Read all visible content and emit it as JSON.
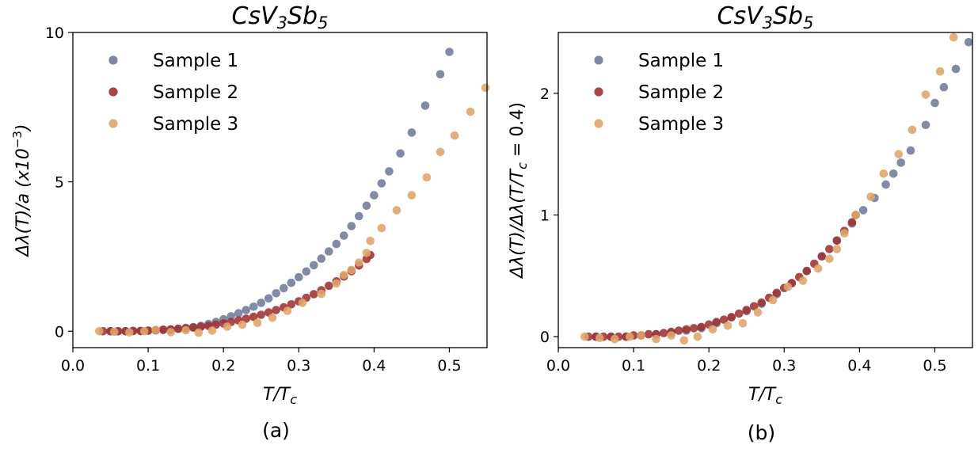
{
  "chart_data": [
    {
      "type": "scatter",
      "title": "CsV3Sb5",
      "xlabel": "T/Tc",
      "ylabel": "Δλ(T)/a (x10⁻³)",
      "panel_label": "(a)",
      "xlim": [
        0.0,
        0.55
      ],
      "ylim": [
        -0.55,
        10.0
      ],
      "xticks": [
        0.0,
        0.1,
        0.2,
        0.3,
        0.4,
        0.5
      ],
      "xtick_labels": [
        "0.0",
        "0.1",
        "0.2",
        "0.3",
        "0.4",
        "0.5"
      ],
      "yticks": [
        0,
        5,
        10
      ],
      "ytick_labels": [
        "0",
        "5",
        "10"
      ],
      "grid": false,
      "legend_position": "top-left",
      "series": [
        {
          "name": "Sample 1",
          "color": "#717a99",
          "points": [
            [
              0.05,
              0.0
            ],
            [
              0.06,
              0.0
            ],
            [
              0.07,
              0.0
            ],
            [
              0.08,
              0.01
            ],
            [
              0.09,
              0.01
            ],
            [
              0.1,
              0.02
            ],
            [
              0.11,
              0.03
            ],
            [
              0.12,
              0.05
            ],
            [
              0.13,
              0.06
            ],
            [
              0.14,
              0.08
            ],
            [
              0.15,
              0.11
            ],
            [
              0.16,
              0.14
            ],
            [
              0.17,
              0.18
            ],
            [
              0.18,
              0.24
            ],
            [
              0.19,
              0.31
            ],
            [
              0.2,
              0.4
            ],
            [
              0.21,
              0.5
            ],
            [
              0.22,
              0.6
            ],
            [
              0.23,
              0.71
            ],
            [
              0.24,
              0.82
            ],
            [
              0.25,
              0.95
            ],
            [
              0.26,
              1.1
            ],
            [
              0.27,
              1.27
            ],
            [
              0.28,
              1.44
            ],
            [
              0.29,
              1.62
            ],
            [
              0.3,
              1.81
            ],
            [
              0.31,
              2.0
            ],
            [
              0.32,
              2.21
            ],
            [
              0.33,
              2.43
            ],
            [
              0.34,
              2.67
            ],
            [
              0.35,
              2.92
            ],
            [
              0.36,
              3.2
            ],
            [
              0.37,
              3.52
            ],
            [
              0.38,
              3.85
            ],
            [
              0.39,
              4.2
            ],
            [
              0.4,
              4.55
            ],
            [
              0.41,
              4.95
            ],
            [
              0.42,
              5.35
            ],
            [
              0.435,
              5.95
            ],
            [
              0.45,
              6.65
            ],
            [
              0.468,
              7.55
            ],
            [
              0.488,
              8.6
            ],
            [
              0.5,
              9.35
            ]
          ]
        },
        {
          "name": "Sample 2",
          "color": "#9e3232",
          "points": [
            [
              0.04,
              0.0
            ],
            [
              0.05,
              0.0
            ],
            [
              0.06,
              0.0
            ],
            [
              0.07,
              0.0
            ],
            [
              0.08,
              0.01
            ],
            [
              0.09,
              0.01
            ],
            [
              0.1,
              0.02
            ],
            [
              0.11,
              0.03
            ],
            [
              0.12,
              0.05
            ],
            [
              0.13,
              0.06
            ],
            [
              0.14,
              0.08
            ],
            [
              0.15,
              0.1
            ],
            [
              0.16,
              0.12
            ],
            [
              0.17,
              0.15
            ],
            [
              0.18,
              0.18
            ],
            [
              0.19,
              0.22
            ],
            [
              0.2,
              0.26
            ],
            [
              0.21,
              0.31
            ],
            [
              0.22,
              0.36
            ],
            [
              0.23,
              0.42
            ],
            [
              0.24,
              0.48
            ],
            [
              0.25,
              0.55
            ],
            [
              0.26,
              0.63
            ],
            [
              0.27,
              0.71
            ],
            [
              0.28,
              0.8
            ],
            [
              0.29,
              0.9
            ],
            [
              0.3,
              1.0
            ],
            [
              0.31,
              1.12
            ],
            [
              0.32,
              1.24
            ],
            [
              0.33,
              1.37
            ],
            [
              0.34,
              1.52
            ],
            [
              0.35,
              1.67
            ],
            [
              0.36,
              1.83
            ],
            [
              0.37,
              2.01
            ],
            [
              0.38,
              2.2
            ],
            [
              0.39,
              2.42
            ],
            [
              0.395,
              2.55
            ]
          ]
        },
        {
          "name": "Sample 3",
          "color": "#dfa56a",
          "points": [
            [
              0.035,
              0.0
            ],
            [
              0.055,
              -0.02
            ],
            [
              0.075,
              -0.04
            ],
            [
              0.095,
              0.0
            ],
            [
              0.11,
              0.04
            ],
            [
              0.13,
              -0.03
            ],
            [
              0.15,
              0.03
            ],
            [
              0.167,
              -0.05
            ],
            [
              0.185,
              0.02
            ],
            [
              0.205,
              0.15
            ],
            [
              0.225,
              0.22
            ],
            [
              0.245,
              0.28
            ],
            [
              0.265,
              0.45
            ],
            [
              0.285,
              0.68
            ],
            [
              0.305,
              0.95
            ],
            [
              0.33,
              1.25
            ],
            [
              0.35,
              1.6
            ],
            [
              0.36,
              1.88
            ],
            [
              0.37,
              2.05
            ],
            [
              0.38,
              2.3
            ],
            [
              0.39,
              2.62
            ],
            [
              0.395,
              3.02
            ],
            [
              0.41,
              3.45
            ],
            [
              0.43,
              4.05
            ],
            [
              0.45,
              4.55
            ],
            [
              0.47,
              5.15
            ],
            [
              0.488,
              6.0
            ],
            [
              0.507,
              6.55
            ],
            [
              0.528,
              7.35
            ],
            [
              0.548,
              8.15
            ]
          ]
        }
      ]
    },
    {
      "type": "scatter",
      "title": "CsV3Sb5",
      "xlabel": "T/Tc",
      "ylabel": "Δλ(T)/Δλ(T/Tc = 0.4)",
      "panel_label": "(b)",
      "xlim": [
        0.0,
        0.55
      ],
      "ylim": [
        -0.09,
        2.5
      ],
      "xticks": [
        0.0,
        0.1,
        0.2,
        0.3,
        0.4,
        0.5
      ],
      "xtick_labels": [
        "0.0",
        "0.1",
        "0.2",
        "0.3",
        "0.4",
        "0.5"
      ],
      "yticks": [
        0,
        1,
        2
      ],
      "ytick_labels": [
        "0",
        "1",
        "2"
      ],
      "grid": false,
      "legend_position": "top-left",
      "series": [
        {
          "name": "Sample 1",
          "color": "#717a99",
          "points": [
            [
              0.05,
              0.0
            ],
            [
              0.07,
              0.0
            ],
            [
              0.09,
              0.0
            ],
            [
              0.11,
              0.01
            ],
            [
              0.13,
              0.02
            ],
            [
              0.15,
              0.03
            ],
            [
              0.17,
              0.05
            ],
            [
              0.19,
              0.07
            ],
            [
              0.21,
              0.11
            ],
            [
              0.23,
              0.16
            ],
            [
              0.25,
              0.21
            ],
            [
              0.27,
              0.27
            ],
            [
              0.29,
              0.35
            ],
            [
              0.31,
              0.44
            ],
            [
              0.33,
              0.54
            ],
            [
              0.35,
              0.66
            ],
            [
              0.37,
              0.79
            ],
            [
              0.39,
              0.93
            ],
            [
              0.405,
              1.04
            ],
            [
              0.42,
              1.14
            ],
            [
              0.435,
              1.25
            ],
            [
              0.445,
              1.34
            ],
            [
              0.455,
              1.43
            ],
            [
              0.468,
              1.53
            ],
            [
              0.488,
              1.74
            ],
            [
              0.5,
              1.92
            ],
            [
              0.512,
              2.05
            ],
            [
              0.528,
              2.2
            ],
            [
              0.545,
              2.42
            ]
          ]
        },
        {
          "name": "Sample 2",
          "color": "#9e3232",
          "points": [
            [
              0.04,
              0.0
            ],
            [
              0.05,
              0.0
            ],
            [
              0.06,
              0.0
            ],
            [
              0.07,
              0.0
            ],
            [
              0.08,
              0.0
            ],
            [
              0.09,
              0.0
            ],
            [
              0.1,
              0.01
            ],
            [
              0.11,
              0.01
            ],
            [
              0.12,
              0.02
            ],
            [
              0.13,
              0.02
            ],
            [
              0.14,
              0.03
            ],
            [
              0.15,
              0.04
            ],
            [
              0.16,
              0.05
            ],
            [
              0.17,
              0.06
            ],
            [
              0.18,
              0.07
            ],
            [
              0.19,
              0.08
            ],
            [
              0.2,
              0.1
            ],
            [
              0.21,
              0.12
            ],
            [
              0.22,
              0.14
            ],
            [
              0.23,
              0.16
            ],
            [
              0.24,
              0.19
            ],
            [
              0.25,
              0.22
            ],
            [
              0.26,
              0.25
            ],
            [
              0.27,
              0.28
            ],
            [
              0.28,
              0.32
            ],
            [
              0.29,
              0.36
            ],
            [
              0.3,
              0.4
            ],
            [
              0.31,
              0.44
            ],
            [
              0.32,
              0.49
            ],
            [
              0.33,
              0.54
            ],
            [
              0.34,
              0.6
            ],
            [
              0.35,
              0.66
            ],
            [
              0.36,
              0.72
            ],
            [
              0.37,
              0.79
            ],
            [
              0.38,
              0.87
            ],
            [
              0.39,
              0.94
            ],
            [
              0.395,
              1.0
            ]
          ]
        },
        {
          "name": "Sample 3",
          "color": "#dfa56a",
          "points": [
            [
              0.035,
              0.0
            ],
            [
              0.055,
              -0.01
            ],
            [
              0.075,
              -0.02
            ],
            [
              0.095,
              0.0
            ],
            [
              0.11,
              0.01
            ],
            [
              0.13,
              -0.02
            ],
            [
              0.15,
              0.01
            ],
            [
              0.167,
              -0.03
            ],
            [
              0.185,
              0.0
            ],
            [
              0.205,
              0.06
            ],
            [
              0.225,
              0.09
            ],
            [
              0.245,
              0.11
            ],
            [
              0.265,
              0.2
            ],
            [
              0.285,
              0.3
            ],
            [
              0.305,
              0.41
            ],
            [
              0.325,
              0.46
            ],
            [
              0.345,
              0.56
            ],
            [
              0.36,
              0.64
            ],
            [
              0.37,
              0.72
            ],
            [
              0.38,
              0.85
            ],
            [
              0.395,
              1.0
            ],
            [
              0.415,
              1.15
            ],
            [
              0.432,
              1.34
            ],
            [
              0.452,
              1.5
            ],
            [
              0.47,
              1.7
            ],
            [
              0.488,
              1.99
            ],
            [
              0.507,
              2.18
            ],
            [
              0.525,
              2.46
            ]
          ]
        }
      ]
    }
  ]
}
